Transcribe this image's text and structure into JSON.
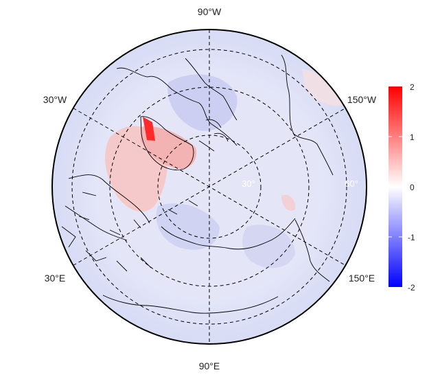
{
  "map": {
    "projection": "north-polar-stereographic",
    "longitude_labels": {
      "top": "90°W",
      "bottom": "90°E",
      "upper_left": "30°W",
      "lower_left": "30°E",
      "upper_right": "150°W",
      "lower_right": "150°E"
    },
    "latitude_labels": [
      "30°",
      "60°"
    ],
    "grid": "dashed"
  },
  "colorbar": {
    "min": -2,
    "max": 2,
    "ticks": [
      "2",
      "1",
      "0",
      "-1",
      "-2"
    ],
    "colors": {
      "high": "#ff0000",
      "mid": "#ffffff",
      "low": "#0000ff"
    }
  },
  "field_colors": {
    "background": "#dfe1f6",
    "warm_anomaly": "#f6c9c9",
    "strong_warm": "#ff2020",
    "cold_anomaly": "#c4c8ef"
  }
}
